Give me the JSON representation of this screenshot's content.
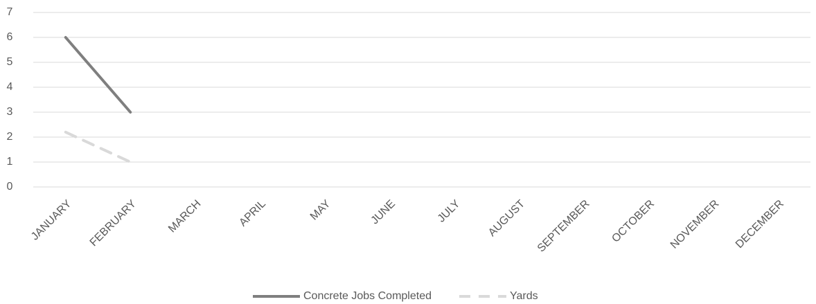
{
  "chart_data": {
    "type": "line",
    "categories": [
      "JANUARY",
      "FEBRUARY",
      "MARCH",
      "APRIL",
      "MAY",
      "JUNE",
      "JULY",
      "AUGUST",
      "SEPTEMBER",
      "OCTOBER",
      "NOVEMBER",
      "DECEMBER"
    ],
    "series": [
      {
        "name": "Concrete Jobs Completed",
        "color": "#7f7f7f",
        "dashed": false,
        "values": [
          6,
          3,
          null,
          null,
          null,
          null,
          null,
          null,
          null,
          null,
          null,
          null
        ]
      },
      {
        "name": "Yards",
        "color": "#d9d9d9",
        "dashed": true,
        "values": [
          2.2,
          1,
          null,
          null,
          null,
          null,
          null,
          null,
          null,
          null,
          null,
          null
        ]
      }
    ],
    "ylim": [
      0,
      7
    ],
    "yticks": [
      0,
      1,
      2,
      3,
      4,
      5,
      6,
      7
    ],
    "grid": true,
    "legend": "bottom"
  }
}
